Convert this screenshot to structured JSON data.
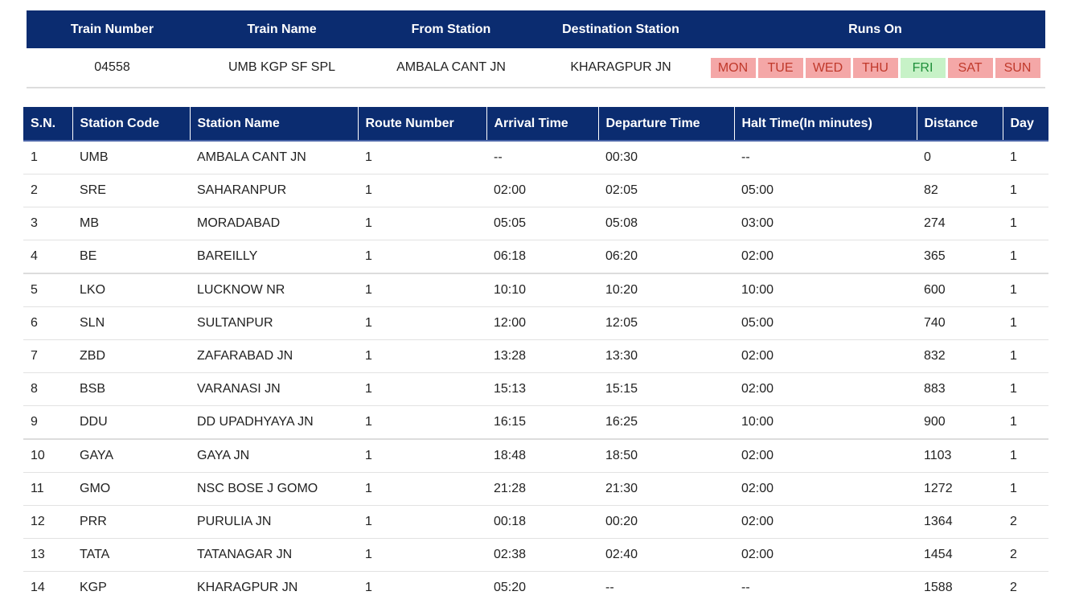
{
  "train_info": {
    "headers": {
      "train_number": "Train Number",
      "train_name": "Train Name",
      "from_station": "From Station",
      "destination_station": "Destination Station",
      "runs_on": "Runs On"
    },
    "train_number": "04558",
    "train_name": "UMB KGP SF SPL",
    "from_station": "AMBALA CANT JN",
    "destination_station": "KHARAGPUR JN",
    "days": [
      {
        "label": "MON",
        "runs": false
      },
      {
        "label": "TUE",
        "runs": false
      },
      {
        "label": "WED",
        "runs": false
      },
      {
        "label": "THU",
        "runs": false
      },
      {
        "label": "FRI",
        "runs": true
      },
      {
        "label": "SAT",
        "runs": false
      },
      {
        "label": "SUN",
        "runs": false
      }
    ]
  },
  "colors": {
    "header_bg": "#0b2c70",
    "day_off_bg": "#f4a7a7",
    "day_off_text": "#c0392b",
    "day_on_bg": "#c7f2c7",
    "day_on_text": "#1e8f3a"
  },
  "schedule": {
    "columns": [
      "S.N.",
      "Station Code",
      "Station Name",
      "Route Number",
      "Arrival Time",
      "Departure Time",
      "Halt Time(In minutes)",
      "Distance",
      "Day"
    ],
    "rows": [
      [
        "1",
        "UMB",
        "AMBALA CANT JN",
        "1",
        "--",
        "00:30",
        "--",
        "0",
        "1"
      ],
      [
        "2",
        "SRE",
        "SAHARANPUR",
        "1",
        "02:00",
        "02:05",
        "05:00",
        "82",
        "1"
      ],
      [
        "3",
        "MB",
        "MORADABAD",
        "1",
        "05:05",
        "05:08",
        "03:00",
        "274",
        "1"
      ],
      [
        "4",
        "BE",
        "BAREILLY",
        "1",
        "06:18",
        "06:20",
        "02:00",
        "365",
        "1"
      ],
      [
        "5",
        "LKO",
        "LUCKNOW NR",
        "1",
        "10:10",
        "10:20",
        "10:00",
        "600",
        "1"
      ],
      [
        "6",
        "SLN",
        "SULTANPUR",
        "1",
        "12:00",
        "12:05",
        "05:00",
        "740",
        "1"
      ],
      [
        "7",
        "ZBD",
        "ZAFARABAD JN",
        "1",
        "13:28",
        "13:30",
        "02:00",
        "832",
        "1"
      ],
      [
        "8",
        "BSB",
        "VARANASI JN",
        "1",
        "15:13",
        "15:15",
        "02:00",
        "883",
        "1"
      ],
      [
        "9",
        "DDU",
        "DD UPADHYAYA JN",
        "1",
        "16:15",
        "16:25",
        "10:00",
        "900",
        "1"
      ],
      [
        "10",
        "GAYA",
        "GAYA JN",
        "1",
        "18:48",
        "18:50",
        "02:00",
        "1103",
        "1"
      ],
      [
        "11",
        "GMO",
        "NSC BOSE J GOMO",
        "1",
        "21:28",
        "21:30",
        "02:00",
        "1272",
        "1"
      ],
      [
        "12",
        "PRR",
        "PURULIA JN",
        "1",
        "00:18",
        "00:20",
        "02:00",
        "1364",
        "2"
      ],
      [
        "13",
        "TATA",
        "TATANAGAR JN",
        "1",
        "02:38",
        "02:40",
        "02:00",
        "1454",
        "2"
      ],
      [
        "14",
        "KGP",
        "KHARAGPUR JN",
        "1",
        "05:20",
        "--",
        "--",
        "1588",
        "2"
      ]
    ]
  }
}
